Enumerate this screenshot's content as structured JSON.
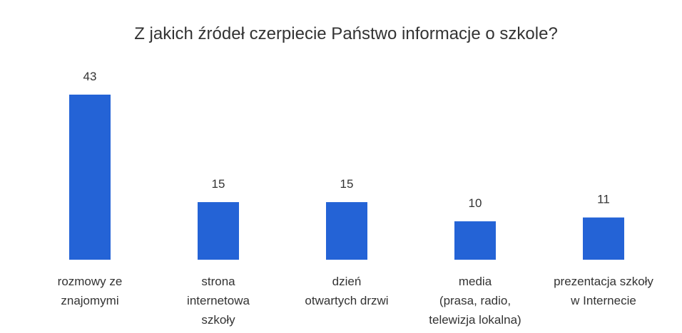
{
  "chart_data": {
    "type": "bar",
    "title": "Z jakich źródeł czerpiecie Państwo informacje o szkole?",
    "categories": [
      "rozmowy ze\nznajomymi",
      "strona\ninternetowa\nszkoły",
      "dzień\notwartych drzwi",
      "media\n(prasa, radio,\ntelewizja lokalna)",
      "prezentacja szkoły\nw Internecie"
    ],
    "values": [
      43,
      15,
      15,
      10,
      11
    ],
    "color": "#2463d6",
    "ylim": [
      0,
      48
    ]
  }
}
